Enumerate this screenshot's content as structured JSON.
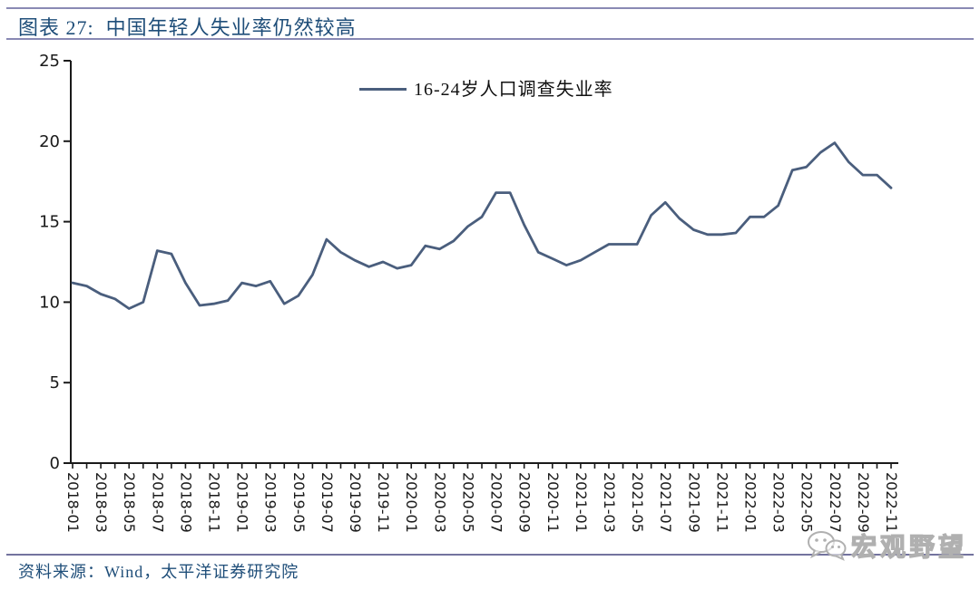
{
  "header": {
    "title": "图表 27:  中国年轻人失业率仍然较高"
  },
  "chart_data": {
    "type": "line",
    "title": "中国年轻人失业率仍然较高",
    "legend": "16-24岁人口调查失业率",
    "xlabel": "",
    "ylabel": "",
    "ylim": [
      0,
      25
    ],
    "yticks": [
      0,
      5,
      10,
      15,
      20,
      25
    ],
    "xtick_label_every": 2,
    "grid": false,
    "legend_position": "top-center",
    "x": [
      "2018-01",
      "2018-02",
      "2018-03",
      "2018-04",
      "2018-05",
      "2018-06",
      "2018-07",
      "2018-08",
      "2018-09",
      "2018-10",
      "2018-11",
      "2018-12",
      "2019-01",
      "2019-02",
      "2019-03",
      "2019-04",
      "2019-05",
      "2019-06",
      "2019-07",
      "2019-08",
      "2019-09",
      "2019-10",
      "2019-11",
      "2019-12",
      "2020-01",
      "2020-02",
      "2020-03",
      "2020-04",
      "2020-05",
      "2020-06",
      "2020-07",
      "2020-08",
      "2020-09",
      "2020-10",
      "2020-11",
      "2020-12",
      "2021-01",
      "2021-02",
      "2021-03",
      "2021-04",
      "2021-05",
      "2021-06",
      "2021-07",
      "2021-08",
      "2021-09",
      "2021-10",
      "2021-11",
      "2021-12",
      "2022-01",
      "2022-02",
      "2022-03",
      "2022-04",
      "2022-05",
      "2022-06",
      "2022-07",
      "2022-08",
      "2022-09",
      "2022-10",
      "2022-11"
    ],
    "values": [
      11.2,
      11.0,
      10.5,
      10.2,
      9.6,
      10.0,
      13.2,
      13.0,
      11.2,
      9.8,
      9.9,
      10.1,
      11.2,
      11.0,
      11.3,
      9.9,
      10.4,
      11.7,
      13.9,
      13.1,
      12.6,
      12.2,
      12.5,
      12.1,
      12.3,
      13.5,
      13.3,
      13.8,
      14.7,
      15.3,
      16.8,
      16.8,
      14.8,
      13.1,
      12.7,
      12.3,
      12.6,
      13.1,
      13.6,
      13.6,
      13.6,
      15.4,
      16.2,
      15.2,
      14.5,
      14.2,
      14.2,
      14.3,
      15.3,
      15.3,
      16.0,
      18.2,
      18.4,
      19.3,
      19.9,
      18.7,
      17.9,
      17.9,
      17.1
    ]
  },
  "footer": {
    "source": "资料来源：Wind，太平洋证券研究院",
    "watermark": "宏观野望"
  },
  "colors": {
    "title": "#1F4E79",
    "source": "#1F4E79",
    "rule": "#8989B4",
    "bottom_rule": "#73739E",
    "series": "#4A5E7D",
    "axis": "#1A1A1A",
    "tick_label": "#1A1A1A",
    "watermark": "#B0B0B0"
  }
}
